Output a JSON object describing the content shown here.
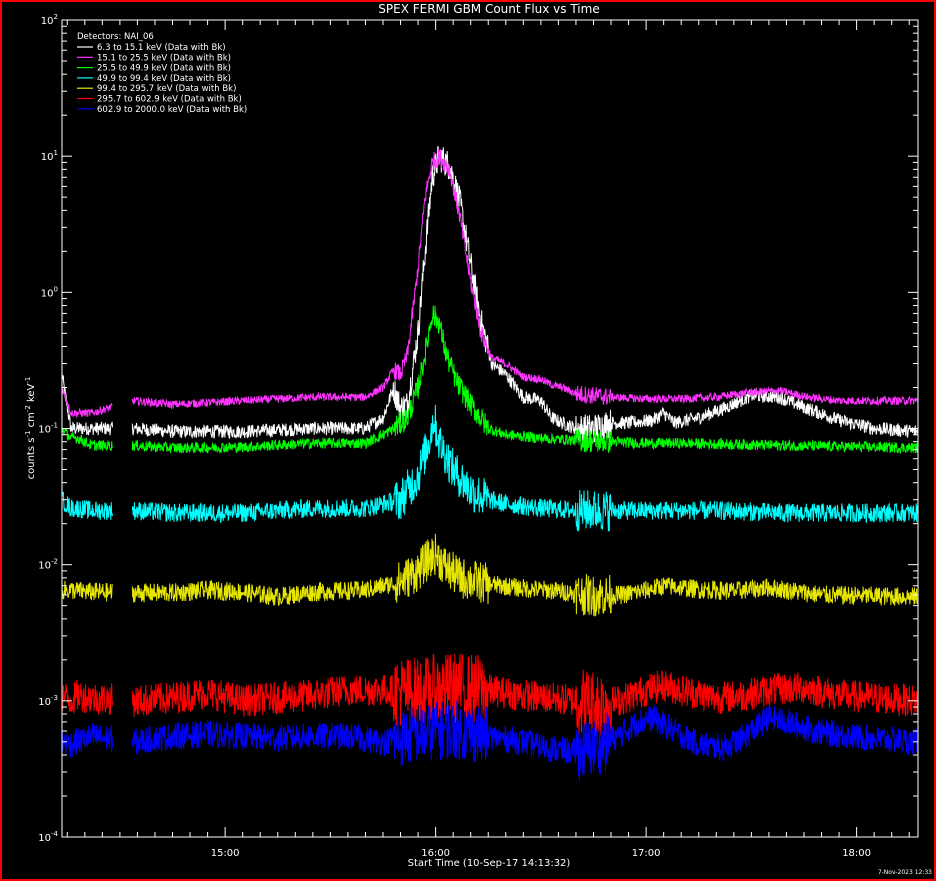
{
  "chart_data": {
    "type": "line",
    "title": "SPEX FERMI GBM Count Flux vs Time",
    "xlabel": "Start Time (10-Sep-17 14:13:32)",
    "ylabel_parts": {
      "pre": "counts s",
      "e1": "-1",
      "mid1": " cm",
      "e2": "-2",
      "mid2": " keV",
      "e3": "-1"
    },
    "y_scale": "log",
    "ylim": [
      0.0001,
      100
    ],
    "xlim_minutes_of_day": [
      853.5,
      1097.5
    ],
    "x_tick_labels": [
      "15:00",
      "16:00",
      "17:00",
      "18:00"
    ],
    "x_tick_values": [
      900,
      960,
      1020,
      1080
    ],
    "y_tick_labels": [
      {
        "base": "10",
        "exp": "-4",
        "value": 0.0001
      },
      {
        "base": "10",
        "exp": "-3",
        "value": 0.001
      },
      {
        "base": "10",
        "exp": "-2",
        "value": 0.01
      },
      {
        "base": "10",
        "exp": "-1",
        "value": 0.1
      },
      {
        "base": "10",
        "exp": "0",
        "value": 1
      },
      {
        "base": "10",
        "exp": "1",
        "value": 10
      },
      {
        "base": "10",
        "exp": "2",
        "value": 100
      }
    ],
    "legend_header": "Detectors: NAI_06",
    "legend_position": "top-left",
    "timestamp": "7-Nov-2023 12:33",
    "data_gap_minutes": [
      873.5,
      868.0
    ],
    "series": [
      {
        "name": "6.3 to 15.1 keV (Data with Bk)",
        "color": "#ffffff",
        "noise": 0.05,
        "points": [
          [
            853.5,
            0.25
          ],
          [
            856,
            0.1
          ],
          [
            858,
            0.1
          ],
          [
            862,
            0.1
          ],
          [
            874,
            0.1
          ],
          [
            885,
            0.095
          ],
          [
            905,
            0.095
          ],
          [
            925,
            0.1
          ],
          [
            940,
            0.1
          ],
          [
            945,
            0.12
          ],
          [
            948,
            0.2
          ],
          [
            950,
            0.14
          ],
          [
            952,
            0.15
          ],
          [
            955,
            0.5
          ],
          [
            957,
            2
          ],
          [
            959,
            7
          ],
          [
            961,
            10
          ],
          [
            964,
            8.5
          ],
          [
            967,
            4.5
          ],
          [
            970,
            1.6
          ],
          [
            973,
            0.6
          ],
          [
            976,
            0.3
          ],
          [
            980,
            0.25
          ],
          [
            985,
            0.17
          ],
          [
            990,
            0.16
          ],
          [
            993,
            0.12
          ],
          [
            996,
            0.11
          ],
          [
            1000,
            0.1
          ],
          [
            1005,
            0.1
          ],
          [
            1010,
            0.11
          ],
          [
            1015,
            0.11
          ],
          [
            1022,
            0.115
          ],
          [
            1025,
            0.13
          ],
          [
            1028,
            0.11
          ],
          [
            1035,
            0.12
          ],
          [
            1042,
            0.14
          ],
          [
            1050,
            0.175
          ],
          [
            1058,
            0.17
          ],
          [
            1066,
            0.14
          ],
          [
            1075,
            0.115
          ],
          [
            1085,
            0.1
          ],
          [
            1097.5,
            0.095
          ]
        ]
      },
      {
        "name": "15.1 to 25.5 keV (Data with Bk)",
        "color": "#ff33ff",
        "noise": 0.03,
        "points": [
          [
            853.5,
            0.2
          ],
          [
            856,
            0.13
          ],
          [
            858,
            0.13
          ],
          [
            862,
            0.13
          ],
          [
            874,
            0.16
          ],
          [
            885,
            0.15
          ],
          [
            905,
            0.16
          ],
          [
            925,
            0.17
          ],
          [
            940,
            0.17
          ],
          [
            945,
            0.2
          ],
          [
            948,
            0.27
          ],
          [
            950,
            0.25
          ],
          [
            952,
            0.35
          ],
          [
            955,
            1.5
          ],
          [
            957,
            5
          ],
          [
            959,
            9
          ],
          [
            961,
            10
          ],
          [
            964,
            8
          ],
          [
            967,
            3.5
          ],
          [
            970,
            1.2
          ],
          [
            973,
            0.5
          ],
          [
            976,
            0.33
          ],
          [
            980,
            0.3
          ],
          [
            985,
            0.24
          ],
          [
            990,
            0.23
          ],
          [
            993,
            0.21
          ],
          [
            996,
            0.2
          ],
          [
            1000,
            0.18
          ],
          [
            1010,
            0.17
          ],
          [
            1020,
            0.165
          ],
          [
            1030,
            0.165
          ],
          [
            1040,
            0.17
          ],
          [
            1050,
            0.185
          ],
          [
            1058,
            0.19
          ],
          [
            1066,
            0.17
          ],
          [
            1075,
            0.16
          ],
          [
            1097.5,
            0.16
          ]
        ]
      },
      {
        "name": "25.5 to 49.9 keV (Data with Bk)",
        "color": "#00ff00",
        "noise": 0.04,
        "points": [
          [
            853.5,
            0.1
          ],
          [
            856,
            0.085
          ],
          [
            858,
            0.085
          ],
          [
            862,
            0.075
          ],
          [
            874,
            0.075
          ],
          [
            885,
            0.072
          ],
          [
            905,
            0.073
          ],
          [
            925,
            0.078
          ],
          [
            940,
            0.078
          ],
          [
            945,
            0.09
          ],
          [
            948,
            0.1
          ],
          [
            952,
            0.12
          ],
          [
            955,
            0.2
          ],
          [
            957,
            0.35
          ],
          [
            959,
            0.7
          ],
          [
            961,
            0.6
          ],
          [
            963,
            0.35
          ],
          [
            966,
            0.22
          ],
          [
            970,
            0.15
          ],
          [
            975,
            0.1
          ],
          [
            980,
            0.09
          ],
          [
            990,
            0.085
          ],
          [
            1000,
            0.082
          ],
          [
            1010,
            0.08
          ],
          [
            1020,
            0.078
          ],
          [
            1030,
            0.078
          ],
          [
            1050,
            0.076
          ],
          [
            1070,
            0.074
          ],
          [
            1097.5,
            0.072
          ]
        ]
      },
      {
        "name": "49.9 to 99.4 keV (Data with Bk)",
        "color": "#00ffff",
        "noise": 0.07,
        "points": [
          [
            853.5,
            0.03
          ],
          [
            856,
            0.026
          ],
          [
            858,
            0.026
          ],
          [
            862,
            0.025
          ],
          [
            874,
            0.025
          ],
          [
            885,
            0.024
          ],
          [
            905,
            0.024
          ],
          [
            925,
            0.026
          ],
          [
            940,
            0.026
          ],
          [
            950,
            0.03
          ],
          [
            955,
            0.045
          ],
          [
            958,
            0.08
          ],
          [
            959.5,
            0.12
          ],
          [
            961,
            0.08
          ],
          [
            965,
            0.05
          ],
          [
            970,
            0.035
          ],
          [
            975,
            0.03
          ],
          [
            980,
            0.028
          ],
          [
            990,
            0.026
          ],
          [
            1000,
            0.025
          ],
          [
            1010,
            0.025
          ],
          [
            1020,
            0.025
          ],
          [
            1040,
            0.025
          ],
          [
            1060,
            0.024
          ],
          [
            1097.5,
            0.024
          ]
        ]
      },
      {
        "name": "99.4 to 295.7 keV (Data with Bk)",
        "color": "#e6e600",
        "noise": 0.07,
        "points": [
          [
            853.5,
            0.0065
          ],
          [
            856,
            0.0065
          ],
          [
            862,
            0.0063
          ],
          [
            874,
            0.0062
          ],
          [
            885,
            0.0062
          ],
          [
            895,
            0.0065
          ],
          [
            905,
            0.0063
          ],
          [
            915,
            0.0058
          ],
          [
            925,
            0.0063
          ],
          [
            940,
            0.0065
          ],
          [
            950,
            0.0075
          ],
          [
            955,
            0.009
          ],
          [
            958,
            0.011
          ],
          [
            960,
            0.012
          ],
          [
            963,
            0.0095
          ],
          [
            967,
            0.008
          ],
          [
            975,
            0.0072
          ],
          [
            985,
            0.0067
          ],
          [
            995,
            0.0064
          ],
          [
            1005,
            0.0059
          ],
          [
            1013,
            0.006
          ],
          [
            1020,
            0.0065
          ],
          [
            1025,
            0.007
          ],
          [
            1035,
            0.0066
          ],
          [
            1045,
            0.0064
          ],
          [
            1055,
            0.0068
          ],
          [
            1060,
            0.0065
          ],
          [
            1070,
            0.006
          ],
          [
            1097.5,
            0.0058
          ]
        ]
      },
      {
        "name": "295.7 to 602.9 keV (Data with Bk)",
        "color": "#ff0000",
        "noise": 0.12,
        "points": [
          [
            853.5,
            0.0011
          ],
          [
            856,
            0.001
          ],
          [
            858,
            0.0011
          ],
          [
            862,
            0.00105
          ],
          [
            874,
            0.001
          ],
          [
            885,
            0.00105
          ],
          [
            895,
            0.00115
          ],
          [
            905,
            0.001
          ],
          [
            915,
            0.00105
          ],
          [
            925,
            0.0011
          ],
          [
            935,
            0.0012
          ],
          [
            945,
            0.0012
          ],
          [
            955,
            0.00115
          ],
          [
            965,
            0.00125
          ],
          [
            975,
            0.0012
          ],
          [
            985,
            0.0011
          ],
          [
            992,
            0.00105
          ],
          [
            1000,
            0.001
          ],
          [
            1005,
            0.00095
          ],
          [
            1012,
            0.001
          ],
          [
            1020,
            0.0012
          ],
          [
            1025,
            0.0013
          ],
          [
            1030,
            0.0012
          ],
          [
            1040,
            0.00105
          ],
          [
            1048,
            0.0011
          ],
          [
            1055,
            0.0012
          ],
          [
            1065,
            0.00125
          ],
          [
            1075,
            0.0011
          ],
          [
            1085,
            0.00105
          ],
          [
            1097.5,
            0.001
          ]
        ]
      },
      {
        "name": "602.9 to 2000.0 keV (Data with Bk)",
        "color": "#0000ff",
        "noise": 0.1,
        "points": [
          [
            853.5,
            0.0005
          ],
          [
            856,
            0.00048
          ],
          [
            858,
            0.0005
          ],
          [
            862,
            0.00055
          ],
          [
            874,
            0.0005
          ],
          [
            885,
            0.00055
          ],
          [
            895,
            0.00057
          ],
          [
            905,
            0.00055
          ],
          [
            915,
            0.00053
          ],
          [
            925,
            0.00055
          ],
          [
            935,
            0.00055
          ],
          [
            945,
            0.0005
          ],
          [
            955,
            0.00058
          ],
          [
            965,
            0.00062
          ],
          [
            975,
            0.00055
          ],
          [
            985,
            0.0005
          ],
          [
            992,
            0.00045
          ],
          [
            1000,
            0.00042
          ],
          [
            1005,
            0.00045
          ],
          [
            1012,
            0.00055
          ],
          [
            1018,
            0.0007
          ],
          [
            1022,
            0.00075
          ],
          [
            1028,
            0.0006
          ],
          [
            1035,
            0.00048
          ],
          [
            1042,
            0.00045
          ],
          [
            1048,
            0.00055
          ],
          [
            1055,
            0.00075
          ],
          [
            1060,
            0.0007
          ],
          [
            1068,
            0.0006
          ],
          [
            1078,
            0.00055
          ],
          [
            1088,
            0.00052
          ],
          [
            1097.5,
            0.0005
          ]
        ]
      }
    ]
  }
}
